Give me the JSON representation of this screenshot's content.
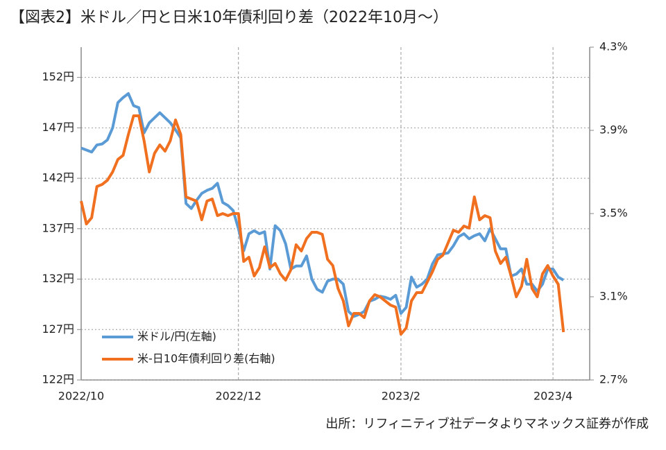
{
  "chart_data": {
    "type": "line",
    "title": "【図表2】米ドル／円と日米10年債利回り差（2022年10月～）",
    "source": "出所：リフィニティブ社データよりマネックス証券が作成",
    "categories": [
      "2022/10",
      null,
      null,
      null,
      null,
      null,
      null,
      null,
      null,
      null,
      null,
      null,
      null,
      null,
      null,
      null,
      null,
      null,
      null,
      null,
      null,
      null,
      null,
      null,
      null,
      null,
      null,
      null,
      null,
      null,
      "2022/12",
      null,
      null,
      null,
      null,
      null,
      null,
      null,
      null,
      null,
      null,
      null,
      null,
      null,
      null,
      null,
      null,
      null,
      null,
      null,
      null,
      null,
      null,
      null,
      null,
      null,
      null,
      null,
      null,
      null,
      null,
      "2023/2",
      null,
      null,
      null,
      null,
      null,
      null,
      null,
      null,
      null,
      null,
      null,
      null,
      null,
      null,
      null,
      null,
      null,
      null,
      null,
      null,
      null,
      null,
      null,
      null,
      null,
      null,
      null,
      null,
      "2023/4",
      null,
      null,
      null,
      null,
      null,
      null
    ],
    "series": [
      {
        "name": "米ドル/円(左軸)",
        "color": "#5b9bd5",
        "values": [
          145.0,
          144.8,
          144.6,
          145.3,
          145.4,
          145.8,
          147.0,
          149.5,
          150.0,
          150.4,
          149.2,
          149.0,
          146.5,
          147.5,
          148.0,
          148.5,
          148.0,
          147.5,
          146.8,
          146.0,
          139.5,
          139.0,
          139.8,
          140.5,
          140.8,
          141.0,
          141.5,
          139.6,
          139.3,
          138.8,
          137.0,
          134.8,
          136.5,
          136.8,
          136.5,
          136.7,
          133.0,
          137.3,
          136.8,
          135.5,
          133.0,
          133.3,
          133.3,
          134.3,
          132.0,
          131.0,
          130.7,
          131.8,
          132.0,
          132.0,
          131.5,
          128.8,
          128.3,
          128.5,
          128.8,
          129.8,
          130.0,
          130.3,
          130.2,
          130.0,
          130.4,
          128.6,
          129.2,
          132.2,
          131.2,
          131.5,
          132.0,
          133.5,
          134.4,
          134.5,
          134.6,
          135.3,
          136.2,
          136.5,
          136.0,
          136.3,
          136.5,
          135.8,
          137.0,
          136.0,
          135.0,
          135.0,
          132.3,
          132.5,
          133.0,
          131.5,
          131.5,
          130.8,
          131.5,
          133.0,
          133.0,
          132.2,
          131.9,
          null,
          null,
          null,
          null
        ]
      },
      {
        "name": "米‐日10年債利回り差(右軸)",
        "color": "#f07020",
        "axis": "y2",
        "values": [
          3.56,
          3.45,
          3.48,
          3.63,
          3.64,
          3.66,
          3.7,
          3.76,
          3.78,
          3.88,
          3.97,
          3.97,
          3.85,
          3.7,
          3.79,
          3.83,
          3.8,
          3.85,
          3.95,
          3.88,
          3.58,
          3.57,
          3.56,
          3.47,
          3.56,
          3.57,
          3.49,
          3.5,
          3.49,
          3.5,
          3.5,
          3.27,
          3.29,
          3.2,
          3.24,
          3.34,
          3.24,
          3.26,
          3.21,
          3.18,
          3.23,
          3.35,
          3.32,
          3.38,
          3.41,
          3.41,
          3.4,
          3.28,
          3.25,
          3.14,
          3.08,
          2.96,
          3.02,
          3.02,
          3.0,
          3.08,
          3.11,
          3.1,
          3.08,
          3.06,
          3.05,
          2.92,
          2.95,
          3.08,
          3.12,
          3.12,
          3.17,
          3.22,
          3.28,
          3.3,
          3.36,
          3.42,
          3.41,
          3.44,
          3.43,
          3.58,
          3.47,
          3.49,
          3.48,
          3.32,
          3.26,
          3.29,
          3.2,
          3.1,
          3.15,
          3.28,
          3.14,
          3.1,
          3.21,
          3.25,
          3.2,
          3.16,
          2.93,
          null,
          null,
          null,
          null
        ]
      }
    ],
    "ylim": [
      122,
      155
    ],
    "yticks": [
      {
        "value": 122,
        "label": "122円"
      },
      {
        "value": 127,
        "label": "127円"
      },
      {
        "value": 132,
        "label": "132円"
      },
      {
        "value": 137,
        "label": "137円"
      },
      {
        "value": 142,
        "label": "142円"
      },
      {
        "value": 147,
        "label": "147円"
      },
      {
        "value": 152,
        "label": "152円"
      }
    ],
    "y2lim": [
      2.7,
      4.3
    ],
    "y2ticks": [
      {
        "value": 2.7,
        "label": "2.7%"
      },
      {
        "value": 3.1,
        "label": "3.1%"
      },
      {
        "value": 3.5,
        "label": "3.5%"
      },
      {
        "value": 3.9,
        "label": "3.9%"
      },
      {
        "value": 4.3,
        "label": "4.3%"
      }
    ],
    "grid": true,
    "legend": "lower left"
  }
}
